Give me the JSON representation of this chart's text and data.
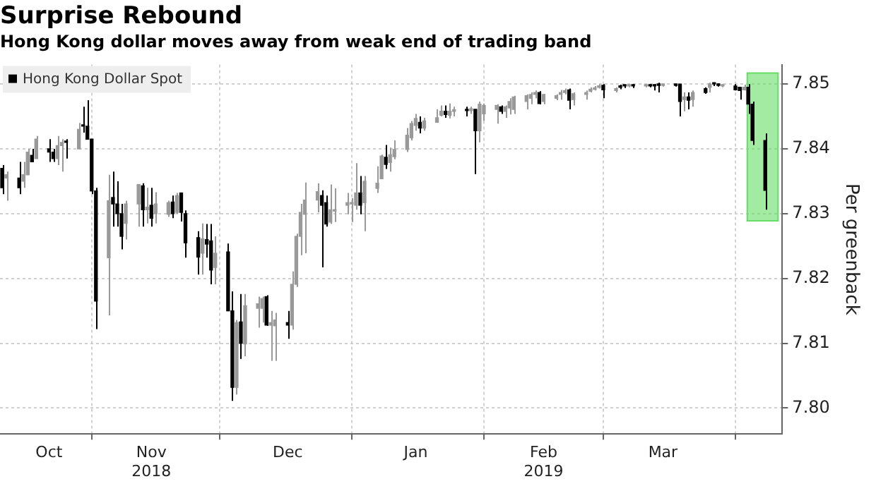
{
  "chart_data": {
    "type": "candlestick",
    "title": "Surprise Rebound",
    "subtitle": "Hong Kong dollar moves away from weak end of trading band",
    "ylabel": "Per greenback",
    "x": [
      "2018-10-11",
      "2018-10-12",
      "2018-10-15",
      "2018-10-16",
      "2018-10-17",
      "2018-10-18",
      "2018-10-19",
      "2018-10-22",
      "2018-10-23",
      "2018-10-24",
      "2018-10-25",
      "2018-10-26",
      "2018-10-29",
      "2018-10-30",
      "2018-10-31",
      "2018-11-01",
      "2018-11-02",
      "2018-11-05",
      "2018-11-06",
      "2018-11-07",
      "2018-11-08",
      "2018-11-09",
      "2018-11-12",
      "2018-11-13",
      "2018-11-14",
      "2018-11-15",
      "2018-11-16",
      "2018-11-19",
      "2018-11-20",
      "2018-11-21",
      "2018-11-22",
      "2018-11-23",
      "2018-11-26",
      "2018-11-27",
      "2018-11-28",
      "2018-11-29",
      "2018-11-30",
      "2018-12-03",
      "2018-12-04",
      "2018-12-05",
      "2018-12-06",
      "2018-12-07",
      "2018-12-10",
      "2018-12-11",
      "2018-12-12",
      "2018-12-13",
      "2018-12-14",
      "2018-12-17",
      "2018-12-18",
      "2018-12-19",
      "2018-12-20",
      "2018-12-21",
      "2018-12-24",
      "2018-12-25",
      "2018-12-26",
      "2018-12-27",
      "2018-12-28",
      "2018-12-31",
      "2019-01-01",
      "2019-01-02",
      "2019-01-03",
      "2019-01-04",
      "2019-01-07",
      "2019-01-08",
      "2019-01-09",
      "2019-01-10",
      "2019-01-11",
      "2019-01-14",
      "2019-01-15",
      "2019-01-16",
      "2019-01-17",
      "2019-01-18",
      "2019-01-21",
      "2019-01-22",
      "2019-01-23",
      "2019-01-24",
      "2019-01-25",
      "2019-01-28",
      "2019-01-29",
      "2019-01-30",
      "2019-01-31",
      "2019-02-01",
      "2019-02-04",
      "2019-02-05",
      "2019-02-06",
      "2019-02-07",
      "2019-02-08",
      "2019-02-11",
      "2019-02-12",
      "2019-02-13",
      "2019-02-14",
      "2019-02-15",
      "2019-02-18",
      "2019-02-19",
      "2019-02-20",
      "2019-02-21",
      "2019-02-22",
      "2019-02-25",
      "2019-02-26",
      "2019-02-27",
      "2019-02-28",
      "2019-03-01",
      "2019-03-04",
      "2019-03-05",
      "2019-03-06",
      "2019-03-07",
      "2019-03-08",
      "2019-03-11",
      "2019-03-12",
      "2019-03-13",
      "2019-03-14",
      "2019-03-15",
      "2019-03-18",
      "2019-03-19",
      "2019-03-20",
      "2019-03-21",
      "2019-03-22",
      "2019-03-25",
      "2019-03-26",
      "2019-03-27",
      "2019-03-28",
      "2019-03-29",
      "2019-04-01",
      "2019-04-02",
      "2019-04-03",
      "2019-04-04",
      "2019-04-05",
      "2019-04-08"
    ],
    "series": [
      {
        "name": "Hong Kong Dollar Spot",
        "color": "#000000",
        "colors": [
          "#000000",
          "#999999",
          "#000000",
          "#999999",
          "#999999",
          "#000000",
          "#999999",
          "#000000",
          "#000000",
          "#999999",
          "#999999",
          "#000000",
          "#999999",
          "#000000",
          "#000000",
          "#000000",
          "#000000",
          "#999999",
          "#000000",
          "#000000",
          "#000000",
          "#999999",
          "#999999",
          "#000000",
          "#999999",
          "#000000",
          "#999999",
          "#999999",
          "#000000",
          "#999999",
          "#000000",
          "#000000",
          "#000000",
          "#999999",
          "#000000",
          "#000000",
          "#999999",
          "#000000",
          "#000000",
          "#999999",
          "#000000",
          "#999999",
          "#999999",
          "#999999",
          "#000000",
          "#999999",
          "#999999",
          "#000000",
          "#999999",
          "#999999",
          "#999999",
          "#999999",
          "#999999",
          "#000000",
          "#000000",
          "#999999",
          "#999999",
          "#999999",
          "#999999",
          "#999999",
          "#000000",
          "#999999",
          "#999999",
          "#999999",
          "#000000",
          "#999999",
          "#999999",
          "#999999",
          "#999999",
          "#999999",
          "#000000",
          "#999999",
          "#999999",
          "#999999",
          "#000000",
          "#999999",
          "#999999",
          "#000000",
          "#999999",
          "#000000",
          "#999999",
          "#999999",
          "#999999",
          "#000000",
          "#999999",
          "#999999",
          "#999999",
          "#999999",
          "#999999",
          "#999999",
          "#000000",
          "#999999",
          "#999999",
          "#999999",
          "#999999",
          "#000000",
          "#999999",
          "#999999",
          "#999999",
          "#999999",
          "#999999",
          "#000000",
          "#999999",
          "#000000",
          "#000000",
          "#999999",
          "#000000",
          "#999999",
          "#000000",
          "#000000",
          "#000000",
          "#999999",
          "#000000",
          "#000000",
          "#999999",
          "#000000",
          "#999999",
          "#000000",
          "#999999",
          "#000000",
          "#000000",
          "#999999",
          "#000000",
          "#000000",
          "#999999",
          "#000000",
          "#000000",
          "#000000"
        ],
        "ohlc": [
          [
            7.837,
            7.8375,
            7.833,
            7.834
          ],
          [
            7.8355,
            7.8365,
            7.832,
            7.836
          ],
          [
            7.8355,
            7.838,
            7.833,
            7.834
          ],
          [
            7.835,
            7.838,
            7.834,
            7.836
          ],
          [
            7.836,
            7.84,
            7.836,
            7.8395
          ],
          [
            7.839,
            7.84,
            7.838,
            7.838
          ],
          [
            7.8385,
            7.842,
            7.8385,
            7.8415
          ],
          [
            7.84,
            7.8415,
            7.838,
            7.8395
          ],
          [
            7.8395,
            7.84,
            7.838,
            7.8385
          ],
          [
            7.8385,
            7.842,
            7.8375,
            7.8405
          ],
          [
            7.8405,
            7.8415,
            7.8365,
            7.841
          ],
          [
            7.841,
            7.8415,
            7.8385,
            7.841
          ],
          [
            7.84,
            7.844,
            7.84,
            7.843
          ],
          [
            7.8435,
            7.8465,
            7.8425,
            7.8435
          ],
          [
            7.8435,
            7.8475,
            7.8415,
            7.8415
          ],
          [
            7.8415,
            7.8415,
            7.833,
            7.8335
          ],
          [
            7.8335,
            7.834,
            7.8122,
            7.8165
          ],
          [
            7.8232,
            7.836,
            7.8143,
            7.832
          ],
          [
            7.8325,
            7.8365,
            7.828,
            7.8315
          ],
          [
            7.8315,
            7.835,
            7.828,
            7.83
          ],
          [
            7.83,
            7.8315,
            7.8245,
            7.8265
          ],
          [
            7.8285,
            7.832,
            7.826,
            7.8315
          ],
          [
            7.8315,
            7.8345,
            7.828,
            7.8345
          ],
          [
            7.8343,
            7.8347,
            7.828,
            7.8306
          ],
          [
            7.8306,
            7.834,
            7.8285,
            7.831
          ],
          [
            7.8313,
            7.834,
            7.828,
            7.8293
          ],
          [
            7.83,
            7.8333,
            7.8285,
            7.8315
          ],
          [
            7.8299,
            7.832,
            7.8295,
            7.8317
          ],
          [
            7.8318,
            7.8328,
            7.8293,
            7.83
          ],
          [
            7.8302,
            7.8332,
            7.83,
            7.8328
          ],
          [
            7.8332,
            7.8332,
            7.8288,
            7.8302
          ],
          [
            7.83,
            7.8305,
            7.8232,
            7.8255
          ],
          [
            7.8263,
            7.8273,
            7.8206,
            7.8233
          ],
          [
            7.8239,
            7.8285,
            7.8206,
            7.8261
          ],
          [
            7.826,
            7.8284,
            7.8232,
            7.8253
          ],
          [
            7.8258,
            7.8284,
            7.8191,
            7.8213
          ],
          [
            7.8217,
            7.8265,
            7.8191,
            7.8239
          ],
          [
            7.8241,
            7.8254,
            7.815,
            7.815
          ],
          [
            7.815,
            7.818,
            7.8011,
            7.8032
          ],
          [
            7.8032,
            7.8136,
            7.8021,
            7.8132
          ],
          [
            7.8133,
            7.8176,
            7.8076,
            7.81
          ],
          [
            7.8099,
            7.8176,
            7.808,
            7.8158
          ],
          [
            7.8154,
            7.8172,
            7.8124,
            7.8161
          ],
          [
            7.8154,
            7.8172,
            7.8132,
            7.8169
          ],
          [
            7.8172,
            7.8174,
            7.8127,
            7.8128
          ],
          [
            7.8128,
            7.815,
            7.8073,
            7.8132
          ],
          [
            7.8127,
            7.8147,
            7.8073,
            7.8136
          ],
          [
            7.8132,
            7.815,
            7.8107,
            7.8128
          ],
          [
            7.8128,
            7.8211,
            7.8121,
            7.8191
          ],
          [
            7.8191,
            7.8269,
            7.8187,
            7.8265
          ],
          [
            7.8265,
            7.8315,
            7.8236,
            7.8302
          ],
          [
            7.8299,
            7.8348,
            7.8239,
            7.8321
          ],
          [
            7.8321,
            7.8347,
            7.8302,
            7.8334
          ],
          [
            7.8328,
            7.8336,
            7.8217,
            7.8313
          ],
          [
            7.8317,
            7.8328,
            7.828,
            7.8284
          ],
          [
            7.8287,
            7.8345,
            7.8284,
            7.8306
          ],
          [
            7.8304,
            7.8339,
            7.8287,
            7.8306
          ],
          [
            7.8313,
            7.8332,
            7.8299,
            7.8317
          ],
          [
            7.8315,
            7.8324,
            7.8287,
            7.8317
          ],
          [
            7.8313,
            7.8378,
            7.8306,
            7.8332
          ],
          [
            7.8332,
            7.8358,
            7.8299,
            7.8313
          ],
          [
            7.8317,
            7.8358,
            7.8273,
            7.835
          ],
          [
            7.8339,
            7.8373,
            7.8332,
            7.8347
          ],
          [
            7.8354,
            7.8391,
            7.8354,
            7.8389
          ],
          [
            7.8387,
            7.8406,
            7.8369,
            7.8376
          ],
          [
            7.8379,
            7.8402,
            7.8365,
            7.8391
          ],
          [
            7.8388,
            7.8413,
            7.8384,
            7.8399
          ],
          [
            7.8399,
            7.8432,
            7.8395,
            7.8421
          ],
          [
            7.8417,
            7.8443,
            7.8413,
            7.8439
          ],
          [
            7.8436,
            7.8454,
            7.8428,
            7.8447
          ],
          [
            7.8441,
            7.845,
            7.8424,
            7.8432
          ],
          [
            7.8432,
            7.8448,
            7.8428,
            7.8443
          ],
          [
            7.8441,
            7.8461,
            7.8441,
            7.8448
          ],
          [
            7.8452,
            7.8467,
            7.845,
            7.8458
          ],
          [
            7.8458,
            7.8467,
            7.8448,
            7.8453
          ],
          [
            7.8452,
            7.847,
            7.8447,
            7.8458
          ],
          [
            7.8458,
            7.8465,
            7.845,
            7.846
          ],
          [
            7.846,
            7.8465,
            7.845,
            7.8459
          ],
          [
            7.8459,
            7.8465,
            7.8454,
            7.8462
          ],
          [
            7.8461,
            7.8461,
            7.8361,
            7.8428
          ],
          [
            7.8428,
            7.8473,
            7.841,
            7.8469
          ],
          [
            7.8454,
            7.847,
            7.8443,
            7.8467
          ],
          [
            7.8461,
            7.8469,
            7.8439,
            7.8467
          ],
          [
            7.8465,
            7.8467,
            7.8454,
            7.8458
          ],
          [
            7.8458,
            7.8467,
            7.8448,
            7.8465
          ],
          [
            7.8463,
            7.8478,
            7.8453,
            7.8473
          ],
          [
            7.8461,
            7.8482,
            7.8454,
            7.848
          ],
          [
            7.8473,
            7.8484,
            7.8461,
            7.8482
          ],
          [
            7.8478,
            7.8487,
            7.8469,
            7.8484
          ],
          [
            7.8484,
            7.849,
            7.8478,
            7.8487
          ],
          [
            7.8487,
            7.8489,
            7.8469,
            7.847
          ],
          [
            7.8473,
            7.8485,
            7.8469,
            7.8484
          ],
          [
            7.8478,
            7.8484,
            7.8475,
            7.8482
          ],
          [
            7.8484,
            7.8491,
            7.8476,
            7.8487
          ],
          [
            7.8487,
            7.8493,
            7.8484,
            7.849
          ],
          [
            7.8491,
            7.8493,
            7.8461,
            7.8475
          ],
          [
            7.8476,
            7.8487,
            7.8467,
            7.8485
          ],
          [
            7.8484,
            7.849,
            7.8476,
            7.8487
          ],
          [
            7.8489,
            7.8495,
            7.8487,
            7.8492
          ],
          [
            7.8492,
            7.8497,
            7.849,
            7.8494
          ],
          [
            7.8495,
            7.85,
            7.8493,
            7.8497
          ],
          [
            7.8498,
            7.85,
            7.8478,
            7.8491
          ],
          [
            7.849,
            7.8495,
            7.8487,
            7.8493
          ],
          [
            7.8496,
            7.8499,
            7.8492,
            7.8495
          ],
          [
            7.8497,
            7.8498,
            7.8494,
            7.8497
          ],
          [
            7.8497,
            7.85,
            7.8495,
            7.8498
          ],
          [
            7.8498,
            7.85,
            7.8494,
            7.8497
          ],
          [
            7.8497,
            7.85,
            7.8495,
            7.8498
          ],
          [
            7.8498,
            7.85,
            7.8495,
            7.8497
          ],
          [
            7.8497,
            7.85,
            7.849,
            7.8497
          ],
          [
            7.8498,
            7.8502,
            7.8487,
            7.8498
          ],
          [
            7.8498,
            7.85,
            7.8496,
            7.8499
          ],
          [
            7.8499,
            7.85,
            7.8496,
            7.8498
          ],
          [
            7.85,
            7.85,
            7.845,
            7.8473
          ],
          [
            7.8476,
            7.8487,
            7.8458,
            7.848
          ],
          [
            7.848,
            7.8487,
            7.8461,
            7.8475
          ],
          [
            7.8476,
            7.849,
            7.8465,
            7.8487
          ],
          [
            7.8493,
            7.8495,
            7.8485,
            7.8487
          ],
          [
            7.8495,
            7.8502,
            7.8487,
            7.85
          ],
          [
            7.85,
            7.8502,
            7.8497,
            7.85
          ],
          [
            7.8499,
            7.8501,
            7.8496,
            7.8498
          ],
          [
            7.8497,
            7.85,
            7.8495,
            7.8498
          ],
          [
            7.8497,
            7.85,
            7.849,
            7.8491
          ],
          [
            7.8495,
            7.8495,
            7.8476,
            7.849
          ],
          [
            7.8491,
            7.8499,
            7.849,
            7.8495
          ],
          [
            7.8495,
            7.85,
            7.8454,
            7.8469
          ],
          [
            7.8469,
            7.8473,
            7.8406,
            7.8413
          ],
          [
            7.8413,
            7.8424,
            7.8306,
            7.8336
          ]
        ]
      }
    ],
    "xlim": [
      "2018-10-10T12:00",
      "2019-04-12"
    ],
    "xticks": [
      {
        "value": "2018-10-22",
        "label": "Oct"
      },
      {
        "value": "2018-11-01T00:00",
        "label": null
      },
      {
        "value": "2018-11-15",
        "label": "Nov\n2018"
      },
      {
        "value": "2018-12-01T00:00",
        "label": null
      },
      {
        "value": "2018-12-17",
        "label": "Dec"
      },
      {
        "value": "2019-01-01T00:00",
        "label": null
      },
      {
        "value": "2019-01-16",
        "label": "Jan"
      },
      {
        "value": "2019-02-01T00:00",
        "label": null
      },
      {
        "value": "2019-02-15",
        "label": "Feb\n2019"
      },
      {
        "value": "2019-03-01T00:00",
        "label": null
      },
      {
        "value": "2019-03-15",
        "label": "Mar"
      },
      {
        "value": "2019-04-01T00:00",
        "label": null
      }
    ],
    "ylim": [
      7.796,
      7.853
    ],
    "yticks": [
      {
        "value": 7.8,
        "label": "7.80"
      },
      7.81,
      7.82,
      7.83,
      7.84,
      7.85
    ],
    "grid": true,
    "legend": "top left",
    "bands": [
      {
        "axis": "x",
        "from": "2019-04-03T19:00",
        "to": "2019-04-11T00:00",
        "color": "#66dd66"
      }
    ]
  }
}
